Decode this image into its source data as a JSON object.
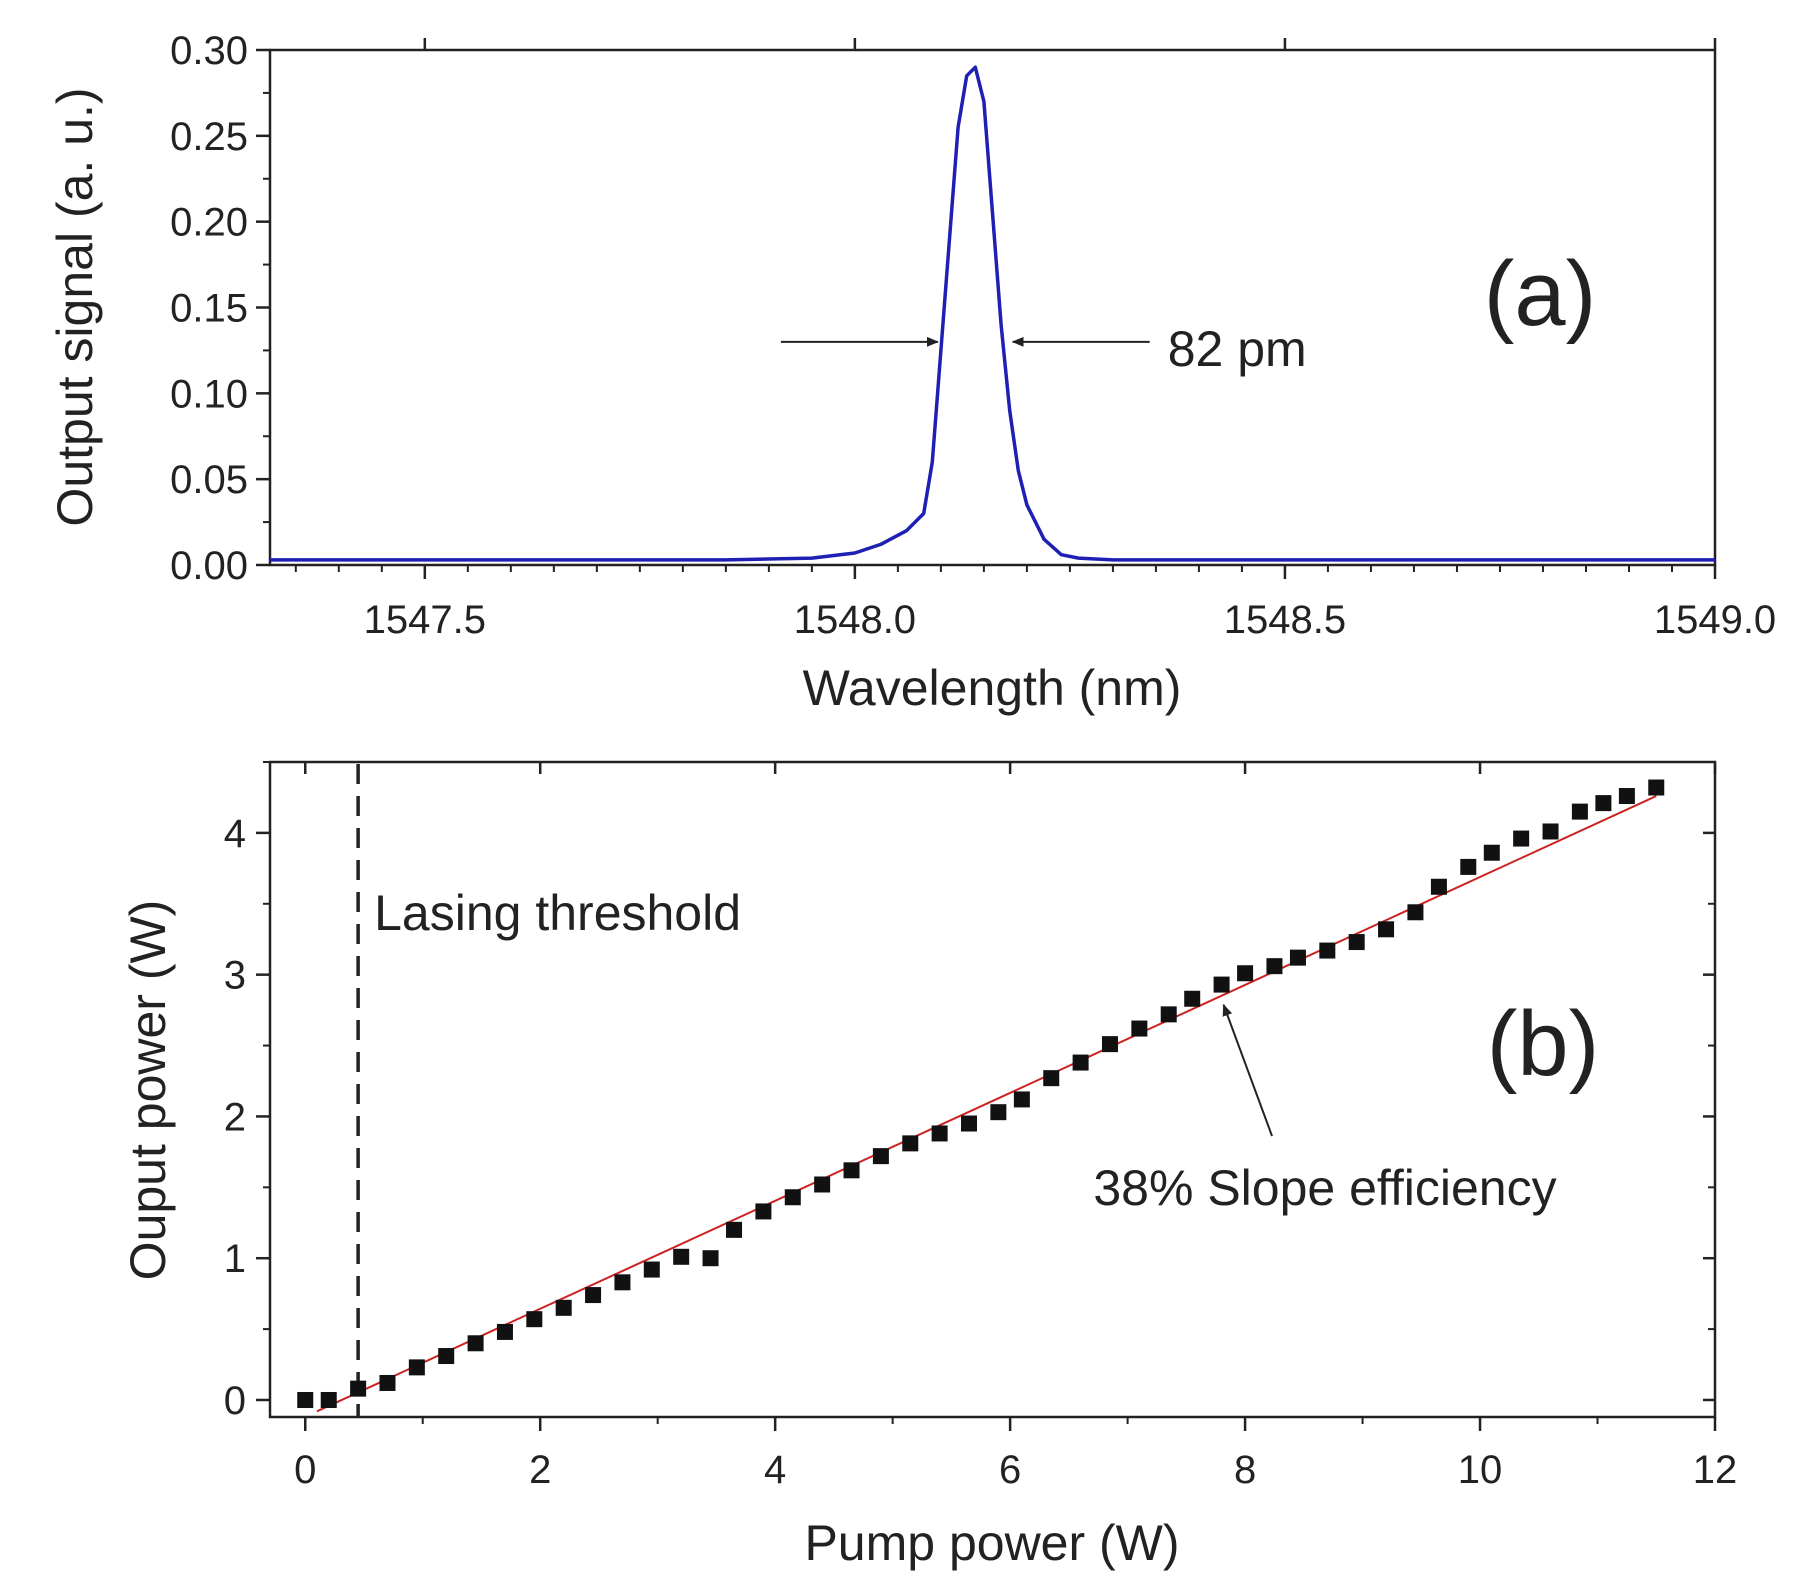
{
  "colors": {
    "spectrum_line": "#1f1fb4",
    "markers": "#111111",
    "fit_line": "#cc2222",
    "threshold_line": "#222222",
    "axes": "#222222"
  },
  "chart_data": [
    {
      "id": "a",
      "type": "line",
      "panel_label": "(a)",
      "title": "",
      "xlabel": "Wavelength (nm)",
      "ylabel": "Output signal (a. u.)",
      "xlim": [
        1547.32,
        1549.0
      ],
      "ylim": [
        0.0,
        0.3
      ],
      "xticks": [
        1547.5,
        1548.0,
        1548.5,
        1549.0
      ],
      "xtick_labels": [
        "1547.5",
        "1548.0",
        "1548.5",
        "1549.0"
      ],
      "yticks": [
        0.0,
        0.05,
        0.1,
        0.15,
        0.2,
        0.25,
        0.3
      ],
      "ytick_labels": [
        "0.00",
        "0.05",
        "0.10",
        "0.15",
        "0.20",
        "0.25",
        "0.30"
      ],
      "grid": false,
      "series": [
        {
          "x": [
            1547.32,
            1547.5,
            1547.7,
            1547.85,
            1547.95,
            1548.0,
            1548.03,
            1548.06,
            1548.08,
            1548.09,
            1548.1,
            1548.11,
            1548.12,
            1548.13,
            1548.14,
            1548.15,
            1548.16,
            1548.17,
            1548.18,
            1548.19,
            1548.2,
            1548.21,
            1548.22,
            1548.24,
            1548.26,
            1548.3,
            1548.5,
            1548.75,
            1549.0
          ],
          "y": [
            0.003,
            0.003,
            0.003,
            0.003,
            0.004,
            0.007,
            0.012,
            0.02,
            0.03,
            0.06,
            0.125,
            0.19,
            0.255,
            0.285,
            0.29,
            0.27,
            0.205,
            0.14,
            0.09,
            0.055,
            0.035,
            0.025,
            0.015,
            0.006,
            0.004,
            0.003,
            0.003,
            0.003,
            0.003
          ]
        }
      ],
      "annotations": [
        {
          "text": "82 pm",
          "type": "fwhm",
          "x_left": 1548.1,
          "x_right": 1548.18,
          "y": 0.13
        }
      ]
    },
    {
      "id": "b",
      "type": "scatter",
      "panel_label": "(b)",
      "title": "",
      "xlabel": "Pump power (W)",
      "ylabel": "Ouput power (W)",
      "xlim": [
        -0.3,
        12.0
      ],
      "ylim": [
        -0.12,
        4.5
      ],
      "xticks": [
        0,
        2,
        4,
        6,
        8,
        10,
        12
      ],
      "xtick_labels": [
        "0",
        "2",
        "4",
        "6",
        "8",
        "10",
        "12"
      ],
      "yticks": [
        0,
        1,
        2,
        3,
        4
      ],
      "ytick_labels": [
        "0",
        "1",
        "2",
        "3",
        "4"
      ],
      "grid": false,
      "series": [
        {
          "x": [
            0.0,
            0.2,
            0.45,
            0.7,
            0.95,
            1.2,
            1.45,
            1.7,
            1.95,
            2.2,
            2.45,
            2.7,
            2.95,
            3.2,
            3.45,
            3.65,
            3.9,
            4.15,
            4.4,
            4.65,
            4.9,
            5.15,
            5.4,
            5.65,
            5.9,
            6.1,
            6.35,
            6.6,
            6.85,
            7.1,
            7.35,
            7.55,
            7.8,
            8.0,
            8.25,
            8.45,
            8.7,
            8.95,
            9.2,
            9.45,
            9.65,
            9.9,
            10.1,
            10.35,
            10.6,
            10.85,
            11.05,
            11.25,
            11.5
          ],
          "y": [
            0.0,
            0.0,
            0.08,
            0.12,
            0.23,
            0.31,
            0.4,
            0.48,
            0.57,
            0.65,
            0.74,
            0.83,
            0.92,
            1.01,
            1.0,
            1.2,
            1.33,
            1.43,
            1.52,
            1.62,
            1.72,
            1.81,
            1.88,
            1.95,
            2.03,
            2.12,
            2.27,
            2.38,
            2.51,
            2.62,
            2.72,
            2.83,
            2.93,
            3.01,
            3.06,
            3.12,
            3.17,
            3.23,
            3.32,
            3.44,
            3.62,
            3.76,
            3.86,
            3.96,
            4.01,
            4.15,
            4.21,
            4.26,
            4.32
          ]
        }
      ],
      "fit_line": {
        "x": [
          0.1,
          11.5
        ],
        "y": [
          -0.08,
          4.26
        ]
      },
      "threshold_x": 0.45,
      "annotations": [
        {
          "text": "Lasing threshold",
          "type": "label"
        },
        {
          "text": "38% Slope efficiency",
          "type": "arrow",
          "tip_x": 7.8,
          "tip_y": 2.83
        }
      ]
    }
  ]
}
